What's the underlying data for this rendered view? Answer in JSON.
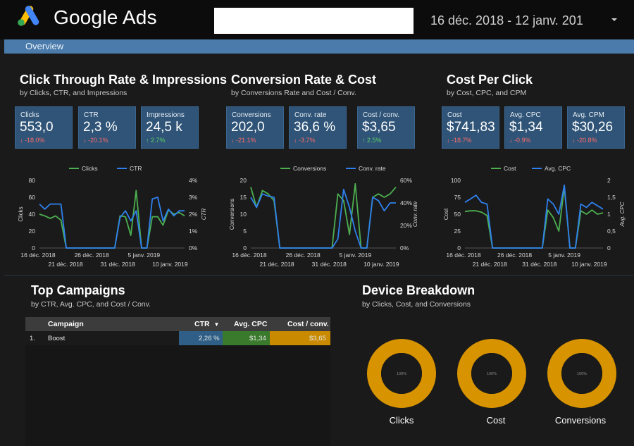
{
  "header": {
    "brand": "Google Ads",
    "date_range": "16 déc. 2018 - 12 janv. 201"
  },
  "nav": {
    "tab": "Overview"
  },
  "colors": {
    "accent": "#4a7bab",
    "card_bg": "#2f5477",
    "series_green": "#4caf50",
    "series_blue": "#2f80ed",
    "donut": "#d89400",
    "cell_blue": "#2f5f86",
    "cell_green": "#3a7a2c",
    "cell_gold": "#c98a00"
  },
  "sections": {
    "ctr": {
      "title": "Click Through Rate & Impressions",
      "subtitle": "by Clicks, CTR, and Impressions"
    },
    "conv": {
      "title": "Conversion Rate & Cost",
      "subtitle": "by Conversions Rate and Cost / Conv."
    },
    "cpc": {
      "title": "Cost Per Click",
      "subtitle": "by Cost, CPC, and CPM"
    },
    "campaigns": {
      "title": "Top Campaigns",
      "subtitle": "by CTR, Avg. CPC, and Cost / Conv."
    },
    "device": {
      "title": "Device Breakdown",
      "subtitle": "by Clicks, Cost, and Conversions"
    }
  },
  "cards": [
    {
      "label": "Clicks",
      "value": "553,0",
      "delta": "-18.0%",
      "dir": "down"
    },
    {
      "label": "CTR",
      "value": "2,3 %",
      "delta": "-20.1%",
      "dir": "down"
    },
    {
      "label": "Impressions",
      "value": "24,5 k",
      "delta": "2.7%",
      "dir": "up"
    },
    {
      "label": "Conversions",
      "value": "202,0",
      "delta": "-21.1%",
      "dir": "down"
    },
    {
      "label": "Conv. rate",
      "value": "36,6 %",
      "delta": "-3.7%",
      "dir": "down"
    },
    {
      "label": "Cost / conv.",
      "value": "$3,65",
      "delta": "2.5%",
      "dir": "up"
    },
    {
      "label": "Cost",
      "value": "$741,83",
      "delta": "-18.7%",
      "dir": "down"
    },
    {
      "label": "Avg. CPC",
      "value": "$1,34",
      "delta": "-0.9%",
      "dir": "down"
    },
    {
      "label": "Avg. CPM",
      "value": "$30,26",
      "delta": "-20.8%",
      "dir": "down"
    }
  ],
  "chart_data": [
    {
      "type": "line",
      "x_ticks_top": [
        "16 déc. 2018",
        "26 déc. 2018",
        "5 janv. 2019"
      ],
      "x_ticks_bottom": [
        "21 déc. 2018",
        "31 déc. 2018",
        "10 janv. 2019"
      ],
      "ylabel": "Clicks",
      "y2label": "CTR",
      "y_ticks": [
        "80",
        "60",
        "40",
        "20",
        "0"
      ],
      "y2_ticks": [
        "4%",
        "3%",
        "2%",
        "1%",
        "0%"
      ],
      "ylim": [
        0,
        80
      ],
      "y2lim": [
        0,
        4
      ],
      "series": [
        {
          "name": "Clicks",
          "axis": "left",
          "color": "#4caf50",
          "values": [
            40,
            38,
            35,
            38,
            33,
            0,
            0,
            0,
            0,
            0,
            0,
            0,
            0,
            0,
            0,
            38,
            37,
            15,
            68,
            0,
            0,
            37,
            37,
            27,
            45,
            40,
            42,
            38
          ]
        },
        {
          "name": "CTR",
          "axis": "right",
          "color": "#2f80ed",
          "values": [
            2.6,
            2.3,
            2.6,
            2.6,
            2.6,
            0,
            0,
            0,
            0,
            0,
            0,
            0,
            0,
            0,
            0,
            1.8,
            2.2,
            1.6,
            2.2,
            0,
            0,
            2.9,
            3.0,
            1.6,
            2.3,
            1.9,
            2.2,
            2.2
          ]
        }
      ]
    },
    {
      "type": "line",
      "x_ticks_top": [
        "16 déc. 2018",
        "26 déc. 2018",
        "5 janv. 2019"
      ],
      "x_ticks_bottom": [
        "21 déc. 2018",
        "31 déc. 2018",
        "10 janv. 2019"
      ],
      "ylabel": "Conversions",
      "y2label": "Conv. rate",
      "y_ticks": [
        "20",
        "15",
        "10",
        "5",
        "0"
      ],
      "y2_ticks": [
        "60%",
        "40%",
        "20%",
        "0%"
      ],
      "ylim": [
        0,
        20
      ],
      "y2lim": [
        0,
        60
      ],
      "series": [
        {
          "name": "Conversions",
          "axis": "left",
          "color": "#4caf50",
          "values": [
            18,
            12,
            17,
            16,
            14,
            0,
            0,
            0,
            0,
            0,
            0,
            0,
            0,
            0,
            0,
            16,
            14,
            4,
            19,
            0,
            0,
            15,
            16,
            15,
            16,
            18
          ]
        },
        {
          "name": "Conv. rate",
          "axis": "right",
          "color": "#2f80ed",
          "values": [
            45,
            36,
            48,
            46,
            45,
            0,
            0,
            0,
            0,
            0,
            0,
            0,
            0,
            0,
            0,
            8,
            52,
            36,
            15,
            0,
            0,
            45,
            42,
            33,
            40,
            40
          ]
        }
      ]
    },
    {
      "type": "line",
      "x_ticks_top": [
        "16 déc. 2018",
        "26 déc. 2018",
        "5 janv. 2019"
      ],
      "x_ticks_bottom": [
        "21 déc. 2018",
        "31 déc. 2018",
        "10 janv. 2019"
      ],
      "ylabel": "Cost",
      "y2label": "Avg. CPC",
      "y_ticks": [
        "100",
        "75",
        "50",
        "25",
        "0"
      ],
      "y2_ticks": [
        "2",
        "1,5",
        "1",
        "0,5",
        "0"
      ],
      "ylim": [
        0,
        100
      ],
      "y2lim": [
        0,
        2
      ],
      "series": [
        {
          "name": "Cost",
          "axis": "left",
          "color": "#4caf50",
          "values": [
            54,
            55,
            55,
            53,
            48,
            0,
            0,
            0,
            0,
            0,
            0,
            0,
            0,
            0,
            0,
            56,
            45,
            25,
            90,
            0,
            0,
            55,
            50,
            56,
            50,
            52
          ]
        },
        {
          "name": "Avg. CPC",
          "axis": "right",
          "color": "#2f80ed",
          "values": [
            1.35,
            1.45,
            1.56,
            1.35,
            1.3,
            0,
            0,
            0,
            0,
            0,
            0,
            0,
            0,
            0,
            0,
            1.45,
            1.3,
            1.0,
            1.86,
            0,
            0,
            1.3,
            1.2,
            1.35,
            1.25,
            1.15
          ]
        }
      ]
    }
  ],
  "table": {
    "headers": {
      "campaign": "Campaign",
      "ctr": "CTR",
      "ctr_sort": "▼",
      "cpc": "Avg. CPC",
      "cost_conv": "Cost / conv."
    },
    "rows": [
      {
        "index": "1.",
        "campaign": "Boost",
        "ctr": "2,26 %",
        "cpc": "$1,34",
        "cost_conv": "$3,65"
      }
    ]
  },
  "device": {
    "donuts": [
      {
        "label": "Clicks",
        "center": "100%"
      },
      {
        "label": "Cost",
        "center": "100%"
      },
      {
        "label": "Conversions",
        "center": "100%"
      }
    ]
  }
}
